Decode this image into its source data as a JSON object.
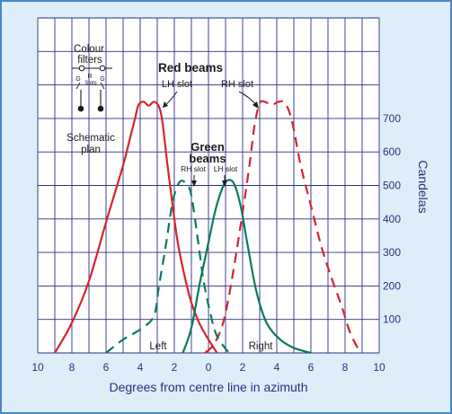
{
  "colors": {
    "panel_bg": "#ddeef8",
    "panel_border": "#4a86c6",
    "grid": "#2c2e80",
    "axis_text": "#2c2e80",
    "red": "#d8232a",
    "green": "#0a7a5a",
    "annotation": "#1a1a1a"
  },
  "chart_data": {
    "type": "line",
    "xlabel": "Degrees from centre line in azimuth",
    "ylabel": "Candelas",
    "xlim": [
      -10,
      10
    ],
    "ylim": [
      0,
      1000
    ],
    "x_ticks": [
      "10",
      "8",
      "6",
      "4",
      "2",
      "0",
      "2",
      "4",
      "6",
      "8",
      "10"
    ],
    "y_ticks": [
      "100",
      "200",
      "300",
      "400",
      "500",
      "600",
      "700"
    ],
    "grid": true,
    "series": [
      {
        "group": "red",
        "style": "solid",
        "points": [
          [
            -9,
            0
          ],
          [
            -8,
            90
          ],
          [
            -7,
            215
          ],
          [
            -6,
            390
          ],
          [
            -5,
            560
          ],
          [
            -4.6,
            640
          ],
          [
            -4.3,
            700
          ],
          [
            -4.1,
            740
          ],
          [
            -3.8,
            750
          ],
          [
            -3.5,
            738
          ],
          [
            -3.2,
            750
          ],
          [
            -2.9,
            735
          ],
          [
            -2.7,
            690
          ],
          [
            -2.4,
            560
          ],
          [
            -2.1,
            440
          ],
          [
            -1.8,
            330
          ],
          [
            -1.4,
            230
          ],
          [
            -1,
            150
          ],
          [
            -0.5,
            85
          ],
          [
            0,
            40
          ],
          [
            0.5,
            0
          ]
        ]
      },
      {
        "group": "red",
        "style": "dashed",
        "points": [
          [
            -0.2,
            0
          ],
          [
            0.3,
            25
          ],
          [
            0.8,
            80
          ],
          [
            1.2,
            170
          ],
          [
            1.6,
            290
          ],
          [
            2,
            420
          ],
          [
            2.4,
            560
          ],
          [
            2.7,
            680
          ],
          [
            3,
            745
          ],
          [
            3.3,
            750
          ],
          [
            3.7,
            740
          ],
          [
            4.1,
            750
          ],
          [
            4.5,
            745
          ],
          [
            4.9,
            690
          ],
          [
            5.4,
            560
          ],
          [
            6,
            440
          ],
          [
            6.6,
            320
          ],
          [
            7.2,
            225
          ],
          [
            7.8,
            140
          ],
          [
            8.3,
            60
          ],
          [
            8.9,
            0
          ]
        ]
      },
      {
        "group": "green",
        "style": "dashed",
        "points": [
          [
            -6,
            0
          ],
          [
            -5,
            40
          ],
          [
            -4,
            70
          ],
          [
            -3.2,
            110
          ],
          [
            -2.9,
            200
          ],
          [
            -2.5,
            320
          ],
          [
            -2.1,
            450
          ],
          [
            -1.7,
            510
          ],
          [
            -1.3,
            505
          ],
          [
            -1,
            470
          ],
          [
            -0.6,
            330
          ],
          [
            -0.3,
            220
          ],
          [
            0.1,
            120
          ],
          [
            0.5,
            50
          ],
          [
            1.2,
            0
          ]
        ]
      },
      {
        "group": "green",
        "style": "solid",
        "points": [
          [
            -1.5,
            0
          ],
          [
            -1,
            75
          ],
          [
            -0.5,
            210
          ],
          [
            0,
            330
          ],
          [
            0.4,
            425
          ],
          [
            0.8,
            490
          ],
          [
            1.1,
            515
          ],
          [
            1.5,
            505
          ],
          [
            1.9,
            435
          ],
          [
            2.3,
            320
          ],
          [
            2.8,
            185
          ],
          [
            3.4,
            90
          ],
          [
            4.2,
            40
          ],
          [
            5,
            15
          ],
          [
            6,
            0
          ]
        ]
      }
    ],
    "annotations": {
      "red_beams_title": "Red beams",
      "red_lh_slot": "LH slot",
      "red_rh_slot": "RH slot",
      "green_beams_line1": "Green",
      "green_beams_line2": "beams",
      "green_rh_slot": "RH slot",
      "green_lh_slot": "LH slot",
      "left_label": "Left",
      "right_label": "Right",
      "colour_filters_line1": "Colour",
      "colour_filters_line2": "filters",
      "slot_letters": [
        "G",
        "R",
        "G"
      ],
      "slots_label": "Slots",
      "schematic_line1": "Schematic",
      "schematic_line2": "plan"
    }
  }
}
